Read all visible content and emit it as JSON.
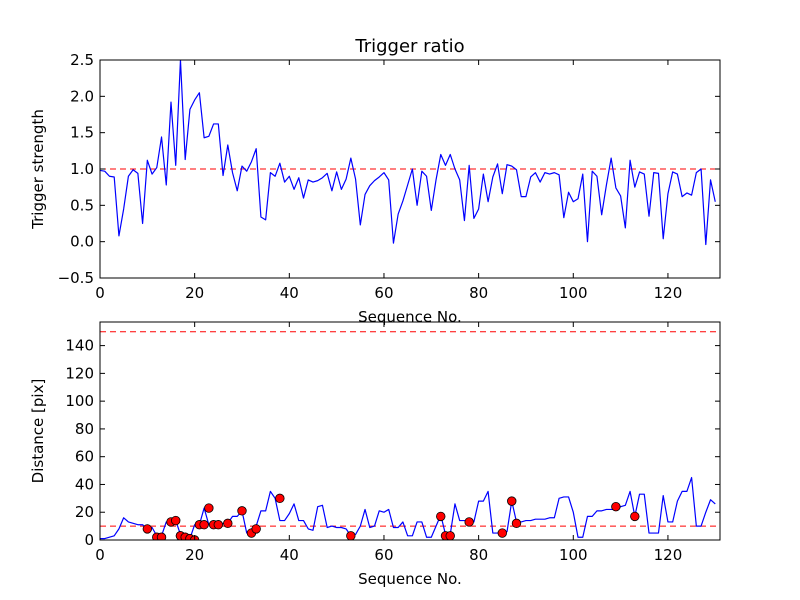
{
  "chart_data": [
    {
      "type": "line",
      "title": "Trigger ratio",
      "xlabel": "Sequence No.",
      "ylabel": "Trigger strength",
      "xlim": [
        0,
        131
      ],
      "ylim": [
        -0.5,
        2.5
      ],
      "xticks": [
        0,
        20,
        40,
        60,
        80,
        100,
        120
      ],
      "yticks": [
        -0.5,
        0.0,
        0.5,
        1.0,
        1.5,
        2.0,
        2.5
      ],
      "ytick_labels": [
        "−0.5",
        "0.0",
        "0.5",
        "1.0",
        "1.5",
        "2.0",
        "2.5"
      ],
      "threshold_lines": [
        1.0
      ],
      "series": [
        {
          "name": "trigger strength",
          "color": "#0000ff",
          "values": [
            0.98,
            0.97,
            0.9,
            0.89,
            0.08,
            0.45,
            0.9,
            0.99,
            0.94,
            0.25,
            1.12,
            0.93,
            1.02,
            1.44,
            0.78,
            1.92,
            1.05,
            2.5,
            1.13,
            1.82,
            1.95,
            2.05,
            1.43,
            1.45,
            1.62,
            1.62,
            0.91,
            1.33,
            0.95,
            0.7,
            1.04,
            0.97,
            1.1,
            1.28,
            0.34,
            0.3,
            0.95,
            0.9,
            1.08,
            0.82,
            0.9,
            0.72,
            0.88,
            0.6,
            0.85,
            0.82,
            0.84,
            0.88,
            0.94,
            0.7,
            0.96,
            0.72,
            0.86,
            1.15,
            0.86,
            0.23,
            0.65,
            0.77,
            0.84,
            0.89,
            0.95,
            0.85,
            -0.02,
            0.38,
            0.56,
            0.78,
            1.0,
            0.5,
            0.97,
            0.9,
            0.43,
            0.85,
            1.2,
            1.05,
            1.2,
            1.0,
            0.85,
            0.29,
            1.05,
            0.32,
            0.45,
            0.93,
            0.55,
            0.89,
            1.07,
            0.66,
            1.06,
            1.04,
            0.99,
            0.62,
            0.62,
            0.89,
            0.95,
            0.82,
            0.95,
            0.93,
            0.95,
            0.92,
            0.33,
            0.68,
            0.55,
            0.59,
            0.93,
            0.0,
            0.97,
            0.9,
            0.37,
            0.78,
            1.15,
            0.74,
            0.63,
            0.19,
            1.12,
            0.75,
            0.96,
            0.93,
            0.35,
            0.95,
            0.94,
            0.04,
            0.66,
            0.96,
            0.93,
            0.62,
            0.67,
            0.64,
            0.95,
            1.0,
            -0.04,
            0.85,
            0.55
          ]
        }
      ]
    },
    {
      "type": "line",
      "title": "",
      "xlabel": "Sequence No.",
      "ylabel": "Distance [pix]",
      "xlim": [
        0,
        131
      ],
      "ylim": [
        0,
        157
      ],
      "xticks": [
        0,
        20,
        40,
        60,
        80,
        100,
        120
      ],
      "yticks": [
        0,
        20,
        40,
        60,
        80,
        100,
        120,
        140
      ],
      "threshold_lines": [
        10,
        150
      ],
      "series": [
        {
          "name": "distance",
          "color": "#0000ff",
          "values": [
            1,
            1,
            2,
            3,
            8,
            16,
            13,
            12,
            11,
            11,
            8,
            9,
            3,
            3,
            13,
            14,
            14,
            4,
            2,
            1,
            11,
            11,
            23,
            11,
            11,
            10,
            12,
            12,
            17,
            17,
            21,
            5,
            8,
            10,
            21,
            21,
            35,
            30,
            14,
            14,
            19,
            26,
            14,
            14,
            8,
            7,
            24,
            25,
            9,
            10,
            9,
            9,
            8,
            3,
            4,
            10,
            22,
            9,
            10,
            21,
            20,
            22,
            9,
            9,
            13,
            3,
            3,
            13,
            13,
            2,
            2,
            10,
            18,
            4,
            4,
            26,
            14,
            14,
            13,
            13,
            28,
            28,
            35,
            5,
            5,
            6,
            6,
            28,
            13,
            13,
            14,
            14,
            15,
            15,
            15,
            16,
            16,
            30,
            31,
            31,
            20,
            2,
            2,
            17,
            17,
            21,
            21,
            22,
            22,
            22,
            24,
            25,
            35,
            17,
            33,
            33,
            5,
            5,
            5,
            32,
            13,
            13,
            28,
            35,
            35,
            45,
            10,
            10,
            20,
            29,
            26
          ]
        },
        {
          "name": "flagged points",
          "color": "#ff0000",
          "type": "scatter",
          "x": [
            10,
            12,
            13,
            15,
            16,
            17,
            17,
            18,
            19,
            20,
            21,
            22,
            23,
            24,
            25,
            27,
            30,
            32,
            33,
            38,
            53,
            72,
            73,
            74,
            78,
            85,
            87,
            88,
            109,
            113
          ],
          "y": [
            8,
            2,
            2,
            13,
            14,
            3,
            3,
            2,
            1,
            0,
            11,
            11,
            23,
            11,
            11,
            12,
            21,
            5,
            8,
            30,
            3,
            17,
            3,
            3,
            13,
            5,
            28,
            12,
            24,
            17
          ]
        }
      ]
    }
  ]
}
